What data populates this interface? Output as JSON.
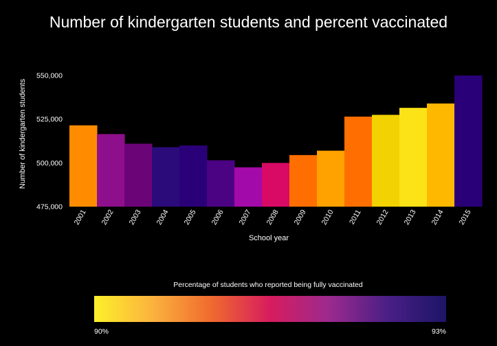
{
  "chart_data": {
    "type": "bar",
    "title": "Number of kindergarten students and percent vaccinated",
    "xlabel": "School year",
    "ylabel": "Number of kindergarten students",
    "ylim": [
      475000,
      550000
    ],
    "yticks": [
      475000,
      500000,
      525000,
      550000
    ],
    "ytick_labels": [
      "475,000",
      "500,000",
      "525,000",
      "550,000"
    ],
    "grid": false,
    "categories": [
      "2001",
      "2002",
      "2003",
      "2004",
      "2005",
      "2006",
      "2007",
      "2008",
      "2009",
      "2010",
      "2011",
      "2012",
      "2013",
      "2014",
      "2015"
    ],
    "values": [
      521500,
      516500,
      511000,
      509000,
      510000,
      501500,
      497500,
      500000,
      504500,
      507000,
      526500,
      527500,
      531500,
      534000,
      550000
    ],
    "bar_colors": [
      "#ff8c00",
      "#8e0f8c",
      "#6b0477",
      "#2b0a7a",
      "#2a0078",
      "#4b0383",
      "#a30aaa",
      "#d90a65",
      "#ff6e00",
      "#ffa200",
      "#ff6e00",
      "#f2d200",
      "#fbe318",
      "#ffb800",
      "#2a0078"
    ],
    "legend": {
      "title": "Percentage of students who reported being fully vaccinated",
      "min_label": "90%",
      "max_label": "93%",
      "placement": "bottom",
      "gradient_colors": [
        "#fdf02a",
        "#fbb23e",
        "#f06a2e",
        "#d71c5e",
        "#9c2a8e",
        "#4a1f85",
        "#1c1566"
      ]
    }
  }
}
